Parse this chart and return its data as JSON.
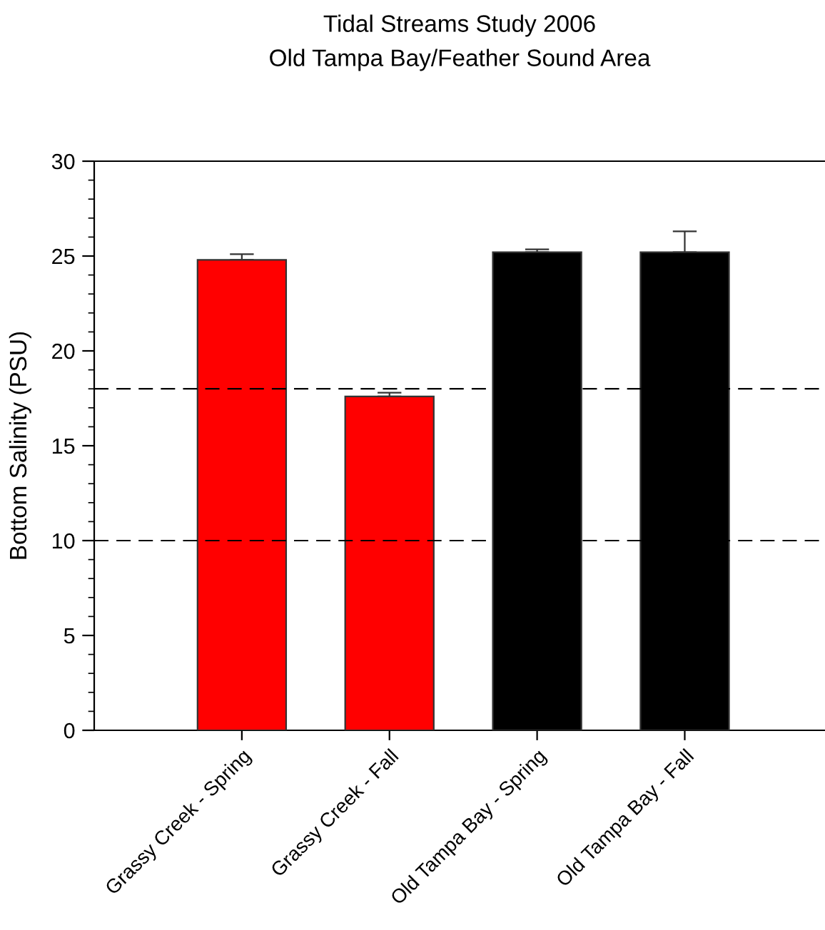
{
  "chart_data": {
    "type": "bar",
    "title": "Tidal Streams Study 2006",
    "subtitle": "Old Tampa Bay/Feather Sound Area",
    "ylabel": "Bottom Salinity (PSU)",
    "categories": [
      "Grassy Creek - Spring",
      "Grassy Creek - Fall",
      "Old Tampa Bay - Spring",
      "Old Tampa Bay - Fall"
    ],
    "values": [
      24.8,
      17.6,
      25.2,
      25.2
    ],
    "errors": [
      0.3,
      0.2,
      0.15,
      1.1
    ],
    "colors": [
      "#ff0000",
      "#ff0000",
      "#000000",
      "#000000"
    ],
    "ylim": [
      0,
      30
    ],
    "yticks": [
      0,
      5,
      10,
      15,
      20,
      25,
      30
    ],
    "grid": false,
    "ref_lines": [
      {
        "axis": "y",
        "value": 18,
        "line_style": "dashed",
        "color": "#000000"
      },
      {
        "axis": "y",
        "value": 10,
        "line_style": "dashed",
        "color": "#000000"
      }
    ]
  }
}
